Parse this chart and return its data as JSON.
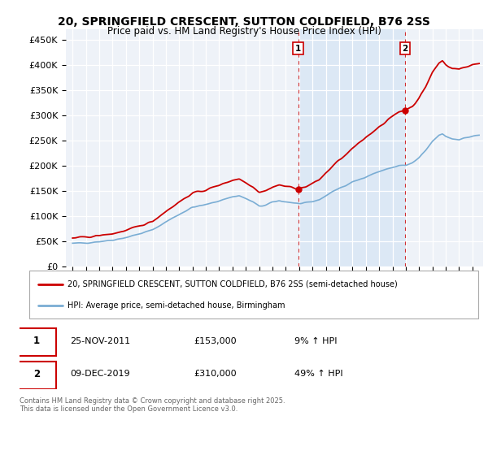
{
  "title": "20, SPRINGFIELD CRESCENT, SUTTON COLDFIELD, B76 2SS",
  "subtitle": "Price paid vs. HM Land Registry's House Price Index (HPI)",
  "legend_entry1": "20, SPRINGFIELD CRESCENT, SUTTON COLDFIELD, B76 2SS (semi-detached house)",
  "legend_entry2": "HPI: Average price, semi-detached house, Birmingham",
  "footer": "Contains HM Land Registry data © Crown copyright and database right 2025.\nThis data is licensed under the Open Government Licence v3.0.",
  "annotation1_label": "1",
  "annotation1_date": "25-NOV-2011",
  "annotation1_price": "£153,000",
  "annotation1_hpi": "9% ↑ HPI",
  "annotation2_label": "2",
  "annotation2_date": "09-DEC-2019",
  "annotation2_price": "£310,000",
  "annotation2_hpi": "49% ↑ HPI",
  "ylim": [
    0,
    470000
  ],
  "yticks": [
    0,
    50000,
    100000,
    150000,
    200000,
    250000,
    300000,
    350000,
    400000,
    450000
  ],
  "red_color": "#cc0000",
  "blue_color": "#7aadd4",
  "background_color": "#eef2f8",
  "highlight_color": "#dce8f5",
  "annotation_box_color": "#cc0000",
  "sale1_year": 2011.92,
  "sale1_value": 153000,
  "sale2_year": 2019.94,
  "sale2_value": 310000,
  "xlim_left": 1994.5,
  "xlim_right": 2025.8
}
